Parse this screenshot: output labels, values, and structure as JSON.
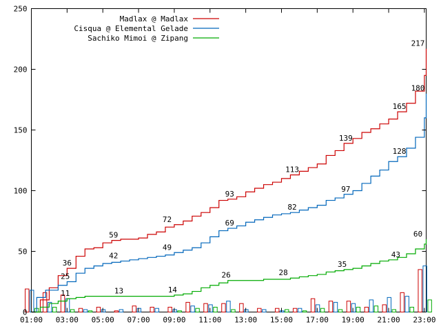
{
  "chart_data": {
    "type": "line",
    "x_axis": {
      "ticks": [
        "01:00",
        "03:00",
        "05:00",
        "07:00",
        "09:00",
        "11:00",
        "13:00",
        "15:00",
        "17:00",
        "19:00",
        "21:00",
        "23:00"
      ],
      "range_hours": [
        1,
        23.1
      ]
    },
    "y_axis": {
      "ticks": [
        "0",
        "50",
        "100",
        "150",
        "200",
        "250"
      ],
      "range": [
        0,
        250
      ]
    },
    "legend_position": "top-left",
    "series": [
      {
        "name": "Madlax @ Madlax",
        "color": "#cc0000",
        "points": [
          [
            1.0,
            0
          ],
          [
            1.5,
            10
          ],
          [
            2.0,
            20
          ],
          [
            2.5,
            30
          ],
          [
            3.0,
            36
          ],
          [
            3.5,
            46
          ],
          [
            4.0,
            52
          ],
          [
            4.5,
            53
          ],
          [
            5.0,
            57
          ],
          [
            5.5,
            59
          ],
          [
            6.0,
            60
          ],
          [
            6.5,
            60
          ],
          [
            7.0,
            61
          ],
          [
            7.5,
            64
          ],
          [
            8.0,
            66
          ],
          [
            8.5,
            70
          ],
          [
            9.0,
            72
          ],
          [
            9.5,
            75
          ],
          [
            10.0,
            79
          ],
          [
            10.5,
            82
          ],
          [
            11.0,
            86
          ],
          [
            11.5,
            92
          ],
          [
            12.0,
            93
          ],
          [
            12.5,
            95
          ],
          [
            13.0,
            99
          ],
          [
            13.5,
            102
          ],
          [
            14.0,
            105
          ],
          [
            14.5,
            107
          ],
          [
            15.0,
            110
          ],
          [
            15.5,
            113
          ],
          [
            16.0,
            116
          ],
          [
            16.5,
            119
          ],
          [
            17.0,
            122
          ],
          [
            17.5,
            129
          ],
          [
            18.0,
            133
          ],
          [
            18.5,
            139
          ],
          [
            19.0,
            143
          ],
          [
            19.5,
            148
          ],
          [
            20.0,
            151
          ],
          [
            20.5,
            155
          ],
          [
            21.0,
            159
          ],
          [
            21.5,
            165
          ],
          [
            22.0,
            172
          ],
          [
            22.5,
            182
          ],
          [
            23.0,
            195
          ],
          [
            23.1,
            217
          ]
        ],
        "labels": [
          {
            "x": 3.0,
            "y": 36,
            "text": "36"
          },
          {
            "x": 5.6,
            "y": 59,
            "text": "59"
          },
          {
            "x": 8.6,
            "y": 72,
            "text": "72"
          },
          {
            "x": 12.1,
            "y": 93,
            "text": "93"
          },
          {
            "x": 15.6,
            "y": 113,
            "text": "113"
          },
          {
            "x": 18.6,
            "y": 139,
            "text": "139"
          },
          {
            "x": 21.6,
            "y": 165,
            "text": "165"
          },
          {
            "x": 23.1,
            "y": 217,
            "text": "217"
          }
        ]
      },
      {
        "name": "Cisqua @ Elemental Gelade",
        "color": "#0066bb",
        "points": [
          [
            1.0,
            0
          ],
          [
            1.3,
            12
          ],
          [
            1.8,
            18
          ],
          [
            2.5,
            22
          ],
          [
            3.0,
            25
          ],
          [
            3.5,
            32
          ],
          [
            4.0,
            36
          ],
          [
            4.5,
            38
          ],
          [
            5.0,
            40
          ],
          [
            5.5,
            41
          ],
          [
            6.0,
            42
          ],
          [
            6.5,
            43
          ],
          [
            7.0,
            44
          ],
          [
            7.5,
            45
          ],
          [
            8.0,
            46
          ],
          [
            8.5,
            47
          ],
          [
            9.0,
            49
          ],
          [
            9.5,
            51
          ],
          [
            10.0,
            53
          ],
          [
            10.5,
            57
          ],
          [
            11.0,
            62
          ],
          [
            11.5,
            67
          ],
          [
            12.0,
            69
          ],
          [
            12.5,
            71
          ],
          [
            13.0,
            74
          ],
          [
            13.5,
            76
          ],
          [
            14.0,
            78
          ],
          [
            14.5,
            80
          ],
          [
            15.0,
            81
          ],
          [
            15.5,
            82
          ],
          [
            16.0,
            84
          ],
          [
            16.5,
            86
          ],
          [
            17.0,
            88
          ],
          [
            17.5,
            92
          ],
          [
            18.0,
            94
          ],
          [
            18.5,
            97
          ],
          [
            19.0,
            100
          ],
          [
            19.5,
            106
          ],
          [
            20.0,
            112
          ],
          [
            20.5,
            117
          ],
          [
            21.0,
            124
          ],
          [
            21.5,
            128
          ],
          [
            22.0,
            135
          ],
          [
            22.5,
            144
          ],
          [
            23.0,
            160
          ],
          [
            23.1,
            180
          ]
        ],
        "labels": [
          {
            "x": 2.9,
            "y": 25,
            "text": "25"
          },
          {
            "x": 5.6,
            "y": 42,
            "text": "42"
          },
          {
            "x": 8.6,
            "y": 49,
            "text": "49"
          },
          {
            "x": 12.1,
            "y": 69,
            "text": "69"
          },
          {
            "x": 15.6,
            "y": 82,
            "text": "82"
          },
          {
            "x": 18.6,
            "y": 97,
            "text": "97"
          },
          {
            "x": 21.6,
            "y": 128,
            "text": "128"
          },
          {
            "x": 23.1,
            "y": 180,
            "text": "180"
          }
        ]
      },
      {
        "name": "Sachiko Mimoi @ Zipang",
        "color": "#00aa00",
        "points": [
          [
            1.0,
            0
          ],
          [
            1.5,
            4
          ],
          [
            2.0,
            7
          ],
          [
            2.5,
            9
          ],
          [
            3.0,
            11
          ],
          [
            3.5,
            12
          ],
          [
            4.0,
            13
          ],
          [
            5.0,
            13
          ],
          [
            6.0,
            13
          ],
          [
            7.0,
            13
          ],
          [
            8.0,
            13
          ],
          [
            9.0,
            14
          ],
          [
            9.5,
            15
          ],
          [
            10.0,
            17
          ],
          [
            10.5,
            20
          ],
          [
            11.0,
            22
          ],
          [
            11.5,
            24
          ],
          [
            12.0,
            26
          ],
          [
            13.0,
            26
          ],
          [
            14.0,
            27
          ],
          [
            15.0,
            27
          ],
          [
            15.5,
            28
          ],
          [
            16.0,
            29
          ],
          [
            16.5,
            30
          ],
          [
            17.0,
            31
          ],
          [
            17.5,
            33
          ],
          [
            18.0,
            34
          ],
          [
            18.5,
            35
          ],
          [
            19.0,
            36
          ],
          [
            19.5,
            38
          ],
          [
            20.0,
            40
          ],
          [
            20.5,
            42
          ],
          [
            21.0,
            43
          ],
          [
            21.5,
            45
          ],
          [
            22.0,
            48
          ],
          [
            22.5,
            52
          ],
          [
            23.0,
            56
          ],
          [
            23.1,
            60
          ]
        ],
        "labels": [
          {
            "x": 2.9,
            "y": 11,
            "text": "11"
          },
          {
            "x": 5.9,
            "y": 13,
            "text": "13"
          },
          {
            "x": 8.9,
            "y": 14,
            "text": "14"
          },
          {
            "x": 11.9,
            "y": 26,
            "text": "26"
          },
          {
            "x": 15.1,
            "y": 28,
            "text": "28"
          },
          {
            "x": 18.4,
            "y": 35,
            "text": "35"
          },
          {
            "x": 21.4,
            "y": 43,
            "text": "43"
          },
          {
            "x": 23.1,
            "y": 60,
            "text": "60"
          }
        ]
      }
    ],
    "hourly_bars": [
      {
        "hour": 1,
        "values": [
          19,
          18,
          3
        ]
      },
      {
        "hour": 2,
        "values": [
          16,
          8,
          4
        ]
      },
      {
        "hour": 3,
        "values": [
          14,
          11,
          2
        ]
      },
      {
        "hour": 4,
        "values": [
          3,
          2,
          1
        ]
      },
      {
        "hour": 5,
        "values": [
          4,
          2,
          0
        ]
      },
      {
        "hour": 6,
        "values": [
          1,
          2,
          0
        ]
      },
      {
        "hour": 7,
        "values": [
          5,
          3,
          0
        ]
      },
      {
        "hour": 8,
        "values": [
          4,
          3,
          0
        ]
      },
      {
        "hour": 9,
        "values": [
          4,
          2,
          1
        ]
      },
      {
        "hour": 10,
        "values": [
          8,
          5,
          3
        ]
      },
      {
        "hour": 11,
        "values": [
          7,
          6,
          4
        ]
      },
      {
        "hour": 12,
        "values": [
          7,
          9,
          2
        ]
      },
      {
        "hour": 13,
        "values": [
          7,
          2,
          0
        ]
      },
      {
        "hour": 14,
        "values": [
          3,
          2,
          0
        ]
      },
      {
        "hour": 15,
        "values": [
          3,
          1,
          2
        ]
      },
      {
        "hour": 16,
        "values": [
          3,
          3,
          1
        ]
      },
      {
        "hour": 17,
        "values": [
          11,
          6,
          3
        ]
      },
      {
        "hour": 18,
        "values": [
          9,
          8,
          2
        ]
      },
      {
        "hour": 19,
        "values": [
          9,
          7,
          4
        ]
      },
      {
        "hour": 20,
        "values": [
          4,
          10,
          5
        ]
      },
      {
        "hour": 21,
        "values": [
          6,
          12,
          2
        ]
      },
      {
        "hour": 22,
        "values": [
          16,
          13,
          4
        ]
      },
      {
        "hour": 23,
        "values": [
          35,
          38,
          10
        ]
      }
    ]
  }
}
